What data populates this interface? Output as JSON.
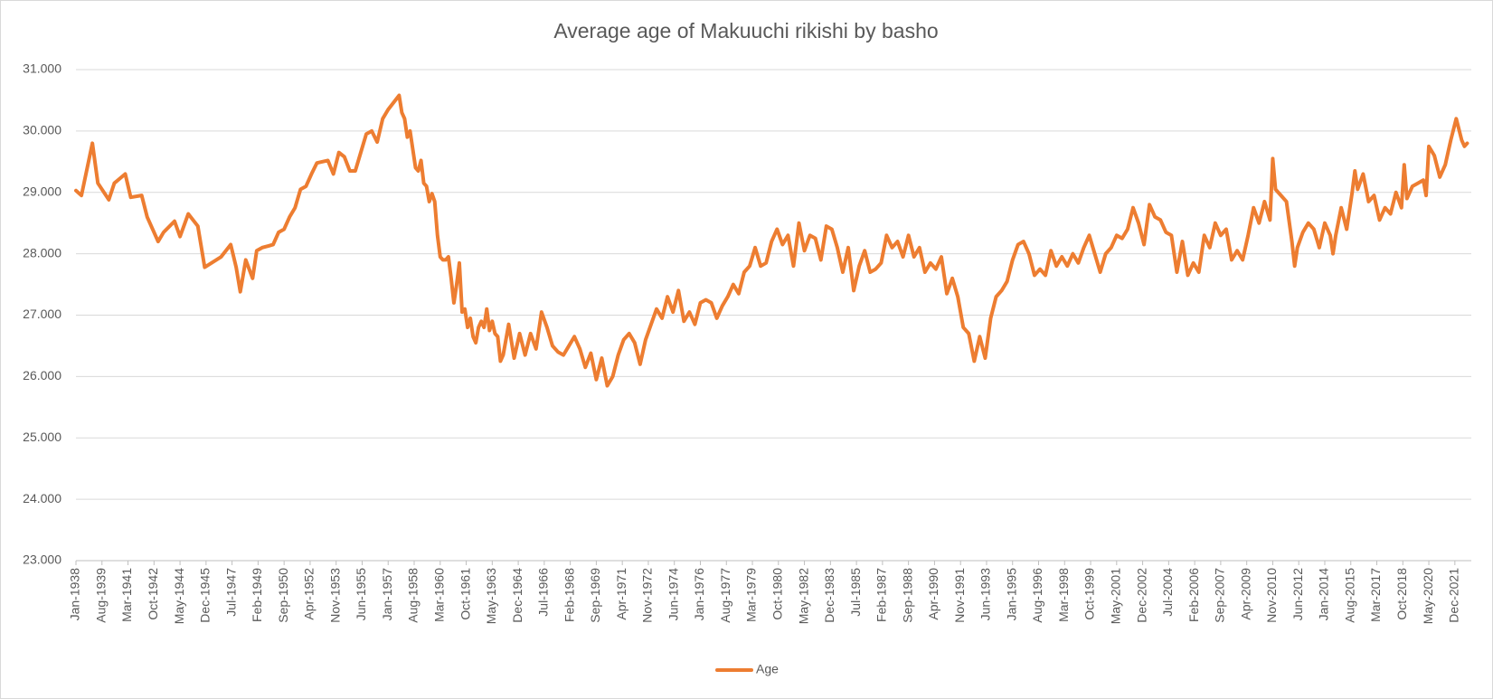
{
  "chart_data": {
    "type": "line",
    "title": "Average age of Makuuchi rikishi by basho",
    "x": [
      "1938-01",
      "1938-05",
      "1939-01",
      "1939-05",
      "1940-01",
      "1940-05",
      "1941-01",
      "1941-05",
      "1942-01",
      "1942-05",
      "1943-01",
      "1943-05",
      "1944-01",
      "1944-05",
      "1944-11",
      "1945-06",
      "1945-11",
      "1946-11",
      "1947-06",
      "1947-10",
      "1948-01",
      "1948-05",
      "1948-10",
      "1949-01",
      "1949-05",
      "1949-10",
      "1950-01",
      "1950-05",
      "1950-09",
      "1951-01",
      "1951-05",
      "1951-09",
      "1952-01",
      "1952-05",
      "1952-09",
      "1953-01",
      "1953-05",
      "1953-09",
      "1954-01",
      "1954-05",
      "1954-09",
      "1955-01",
      "1955-05",
      "1955-09",
      "1956-01",
      "1956-05",
      "1956-09",
      "1957-01",
      "1957-09",
      "1957-11",
      "1958-01",
      "1958-03",
      "1958-05",
      "1958-07",
      "1958-09",
      "1958-11",
      "1959-01",
      "1959-03",
      "1959-05",
      "1959-07",
      "1959-09",
      "1959-11",
      "1960-01",
      "1960-03",
      "1960-05",
      "1960-07",
      "1960-09",
      "1960-11",
      "1961-01",
      "1961-03",
      "1961-05",
      "1961-07",
      "1961-09",
      "1961-11",
      "1962-01",
      "1962-03",
      "1962-05",
      "1962-07",
      "1962-09",
      "1962-11",
      "1963-01",
      "1963-03",
      "1963-05",
      "1963-07",
      "1963-09",
      "1963-11",
      "1964-01",
      "1964-05",
      "1964-09",
      "1965-01",
      "1965-05",
      "1965-09",
      "1966-01",
      "1966-05",
      "1966-09",
      "1967-01",
      "1967-05",
      "1967-09",
      "1968-01",
      "1968-05",
      "1968-09",
      "1969-01",
      "1969-05",
      "1969-09",
      "1970-01",
      "1970-05",
      "1970-09",
      "1971-01",
      "1971-05",
      "1971-09",
      "1972-01",
      "1972-05",
      "1972-09",
      "1973-01",
      "1973-05",
      "1973-09",
      "1974-01",
      "1974-05",
      "1974-09",
      "1975-01",
      "1975-05",
      "1975-09",
      "1976-01",
      "1976-05",
      "1976-09",
      "1977-01",
      "1977-05",
      "1977-09",
      "1978-01",
      "1978-05",
      "1978-09",
      "1979-01",
      "1979-05",
      "1979-09",
      "1980-01",
      "1980-05",
      "1980-09",
      "1981-01",
      "1981-05",
      "1981-09",
      "1982-01",
      "1982-05",
      "1982-09",
      "1983-01",
      "1983-05",
      "1983-09",
      "1984-01",
      "1984-05",
      "1984-09",
      "1985-01",
      "1985-05",
      "1985-09",
      "1986-01",
      "1986-05",
      "1986-09",
      "1987-01",
      "1987-05",
      "1987-09",
      "1988-01",
      "1988-05",
      "1988-09",
      "1989-01",
      "1989-05",
      "1989-09",
      "1990-01",
      "1990-05",
      "1990-09",
      "1991-01",
      "1991-05",
      "1991-09",
      "1992-01",
      "1992-05",
      "1992-09",
      "1993-01",
      "1993-05",
      "1993-09",
      "1994-01",
      "1994-05",
      "1994-09",
      "1995-01",
      "1995-05",
      "1995-09",
      "1996-01",
      "1996-05",
      "1996-09",
      "1997-01",
      "1997-05",
      "1997-09",
      "1998-01",
      "1998-05",
      "1998-09",
      "1999-01",
      "1999-05",
      "1999-09",
      "2000-01",
      "2000-05",
      "2000-09",
      "2001-01",
      "2001-05",
      "2001-09",
      "2002-01",
      "2002-05",
      "2002-09",
      "2003-01",
      "2003-05",
      "2003-09",
      "2004-01",
      "2004-05",
      "2004-09",
      "2005-01",
      "2005-05",
      "2005-09",
      "2006-01",
      "2006-05",
      "2006-09",
      "2007-01",
      "2007-05",
      "2007-09",
      "2008-01",
      "2008-05",
      "2008-09",
      "2009-01",
      "2009-05",
      "2009-09",
      "2010-01",
      "2010-05",
      "2010-09",
      "2010-11",
      "2011-01",
      "2011-05",
      "2011-09",
      "2012-01",
      "2012-03",
      "2012-05",
      "2012-09",
      "2013-01",
      "2013-05",
      "2013-09",
      "2014-01",
      "2014-05",
      "2014-07",
      "2014-09",
      "2015-01",
      "2015-05",
      "2015-09",
      "2015-11",
      "2016-01",
      "2016-05",
      "2016-09",
      "2017-01",
      "2017-05",
      "2017-09",
      "2018-01",
      "2018-05",
      "2018-09",
      "2018-11",
      "2019-01",
      "2019-05",
      "2019-09",
      "2020-01",
      "2020-03",
      "2020-05",
      "2020-09",
      "2021-01",
      "2021-05",
      "2021-09",
      "2022-01",
      "2022-05",
      "2022-07",
      "2022-09"
    ],
    "series": [
      {
        "name": "Age",
        "color": "#ed7d31",
        "values": [
          29.03,
          28.95,
          29.8,
          29.15,
          28.88,
          29.15,
          29.3,
          28.92,
          28.95,
          28.6,
          28.2,
          28.35,
          28.53,
          28.28,
          28.65,
          28.45,
          27.78,
          27.95,
          28.15,
          27.78,
          27.38,
          27.9,
          27.6,
          28.05,
          28.1,
          28.13,
          28.15,
          28.35,
          28.4,
          28.6,
          28.75,
          29.05,
          29.1,
          29.3,
          29.48,
          29.5,
          29.52,
          29.3,
          29.65,
          29.58,
          29.35,
          29.35,
          29.65,
          29.95,
          30.0,
          29.82,
          30.2,
          30.35,
          30.58,
          30.3,
          30.2,
          29.9,
          30.0,
          29.7,
          29.4,
          29.35,
          29.52,
          29.15,
          29.1,
          28.85,
          28.98,
          28.85,
          28.3,
          27.95,
          27.9,
          27.9,
          27.95,
          27.6,
          27.2,
          27.5,
          27.85,
          27.05,
          27.1,
          26.8,
          26.95,
          26.65,
          26.55,
          26.8,
          26.9,
          26.8,
          27.1,
          26.75,
          26.9,
          26.7,
          26.65,
          26.25,
          26.35,
          26.85,
          26.3,
          26.7,
          26.35,
          26.7,
          26.45,
          27.05,
          26.8,
          26.5,
          26.4,
          26.35,
          26.5,
          26.65,
          26.45,
          26.15,
          26.38,
          25.95,
          26.3,
          25.85,
          26.0,
          26.35,
          26.6,
          26.7,
          26.55,
          26.2,
          26.6,
          26.85,
          27.1,
          26.95,
          27.3,
          27.05,
          27.4,
          26.9,
          27.05,
          26.85,
          27.2,
          27.25,
          27.2,
          26.95,
          27.15,
          27.3,
          27.5,
          27.35,
          27.7,
          27.8,
          28.1,
          27.8,
          27.85,
          28.2,
          28.4,
          28.15,
          28.3,
          27.8,
          28.5,
          28.05,
          28.3,
          28.25,
          27.9,
          28.45,
          28.4,
          28.1,
          27.7,
          28.1,
          27.4,
          27.8,
          28.05,
          27.7,
          27.75,
          27.85,
          28.3,
          28.1,
          28.2,
          27.95,
          28.3,
          27.95,
          28.1,
          27.7,
          27.85,
          27.75,
          27.95,
          27.35,
          27.6,
          27.3,
          26.8,
          26.7,
          26.25,
          26.65,
          26.3,
          26.95,
          27.3,
          27.4,
          27.55,
          27.9,
          28.15,
          28.2,
          28.0,
          27.65,
          27.75,
          27.65,
          28.05,
          27.8,
          27.95,
          27.8,
          28.0,
          27.85,
          28.1,
          28.3,
          28.0,
          27.7,
          28.0,
          28.1,
          28.3,
          28.25,
          28.4,
          28.75,
          28.5,
          28.15,
          28.8,
          28.6,
          28.55,
          28.35,
          28.3,
          27.7,
          28.2,
          27.65,
          27.85,
          27.7,
          28.3,
          28.1,
          28.5,
          28.3,
          28.4,
          27.9,
          28.05,
          27.9,
          28.3,
          28.75,
          28.5,
          28.85,
          28.55,
          29.55,
          29.05,
          28.95,
          28.85,
          28.2,
          27.8,
          28.1,
          28.35,
          28.5,
          28.4,
          28.1,
          28.5,
          28.3,
          28.0,
          28.3,
          28.75,
          28.4,
          29.0,
          29.35,
          29.05,
          29.3,
          28.85,
          28.95,
          28.55,
          28.75,
          28.65,
          29.0,
          28.75,
          29.45,
          28.9,
          29.1,
          29.15,
          29.2,
          28.95,
          29.75,
          29.6,
          29.25,
          29.45,
          29.85,
          30.2,
          29.85,
          29.75,
          29.8
        ]
      }
    ],
    "xlim": [
      "1938-01",
      "2022-12"
    ],
    "xticks": [
      {
        "value": "1938-01",
        "label": "Jan-1938"
      },
      {
        "value": "1939-08",
        "label": "Aug-1939"
      },
      {
        "value": "1941-03",
        "label": "Mar-1941"
      },
      {
        "value": "1942-10",
        "label": "Oct-1942"
      },
      {
        "value": "1944-05",
        "label": "May-1944"
      },
      {
        "value": "1945-12",
        "label": "Dec-1945"
      },
      {
        "value": "1947-07",
        "label": "Jul-1947"
      },
      {
        "value": "1949-02",
        "label": "Feb-1949"
      },
      {
        "value": "1950-09",
        "label": "Sep-1950"
      },
      {
        "value": "1952-04",
        "label": "Apr-1952"
      },
      {
        "value": "1953-11",
        "label": "Nov-1953"
      },
      {
        "value": "1955-06",
        "label": "Jun-1955"
      },
      {
        "value": "1957-01",
        "label": "Jan-1957"
      },
      {
        "value": "1958-08",
        "label": "Aug-1958"
      },
      {
        "value": "1960-03",
        "label": "Mar-1960"
      },
      {
        "value": "1961-10",
        "label": "Oct-1961"
      },
      {
        "value": "1963-05",
        "label": "May-1963"
      },
      {
        "value": "1964-12",
        "label": "Dec-1964"
      },
      {
        "value": "1966-07",
        "label": "Jul-1966"
      },
      {
        "value": "1968-02",
        "label": "Feb-1968"
      },
      {
        "value": "1969-09",
        "label": "Sep-1969"
      },
      {
        "value": "1971-04",
        "label": "Apr-1971"
      },
      {
        "value": "1972-11",
        "label": "Nov-1972"
      },
      {
        "value": "1974-06",
        "label": "Jun-1974"
      },
      {
        "value": "1976-01",
        "label": "Jan-1976"
      },
      {
        "value": "1977-08",
        "label": "Aug-1977"
      },
      {
        "value": "1979-03",
        "label": "Mar-1979"
      },
      {
        "value": "1980-10",
        "label": "Oct-1980"
      },
      {
        "value": "1982-05",
        "label": "May-1982"
      },
      {
        "value": "1983-12",
        "label": "Dec-1983"
      },
      {
        "value": "1985-07",
        "label": "Jul-1985"
      },
      {
        "value": "1987-02",
        "label": "Feb-1987"
      },
      {
        "value": "1988-09",
        "label": "Sep-1988"
      },
      {
        "value": "1990-04",
        "label": "Apr-1990"
      },
      {
        "value": "1991-11",
        "label": "Nov-1991"
      },
      {
        "value": "1993-06",
        "label": "Jun-1993"
      },
      {
        "value": "1995-01",
        "label": "Jan-1995"
      },
      {
        "value": "1996-08",
        "label": "Aug-1996"
      },
      {
        "value": "1998-03",
        "label": "Mar-1998"
      },
      {
        "value": "1999-10",
        "label": "Oct-1999"
      },
      {
        "value": "2001-05",
        "label": "May-2001"
      },
      {
        "value": "2002-12",
        "label": "Dec-2002"
      },
      {
        "value": "2004-07",
        "label": "Jul-2004"
      },
      {
        "value": "2006-02",
        "label": "Feb-2006"
      },
      {
        "value": "2007-09",
        "label": "Sep-2007"
      },
      {
        "value": "2009-04",
        "label": "Apr-2009"
      },
      {
        "value": "2010-11",
        "label": "Nov-2010"
      },
      {
        "value": "2012-06",
        "label": "Jun-2012"
      },
      {
        "value": "2014-01",
        "label": "Jan-2014"
      },
      {
        "value": "2015-08",
        "label": "Aug-2015"
      },
      {
        "value": "2017-03",
        "label": "Mar-2017"
      },
      {
        "value": "2018-10",
        "label": "Oct-2018"
      },
      {
        "value": "2020-05",
        "label": "May-2020"
      },
      {
        "value": "2021-12",
        "label": "Dec-2021"
      }
    ],
    "ylim": [
      23,
      31
    ],
    "yticks": [
      {
        "value": 23,
        "label": "23.000"
      },
      {
        "value": 24,
        "label": "24.000"
      },
      {
        "value": 25,
        "label": "25.000"
      },
      {
        "value": 26,
        "label": "26.000"
      },
      {
        "value": 27,
        "label": "27.000"
      },
      {
        "value": 28,
        "label": "28.000"
      },
      {
        "value": 29,
        "label": "29.000"
      },
      {
        "value": 30,
        "label": "30.000"
      },
      {
        "value": 31,
        "label": "31.000"
      }
    ],
    "grid": true,
    "legend": "bottom"
  }
}
